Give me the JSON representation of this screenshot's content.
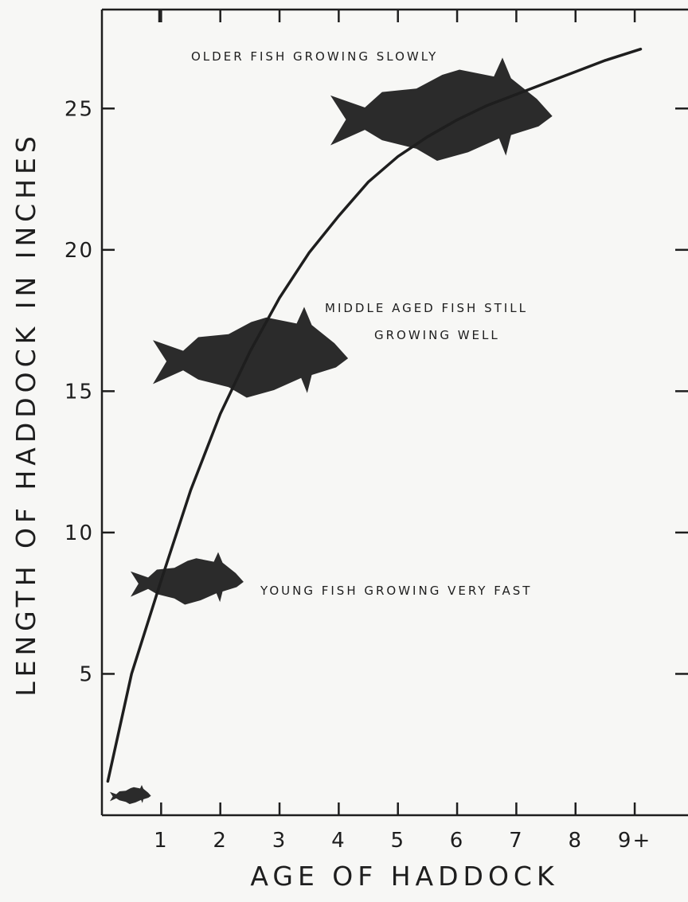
{
  "chart_data": {
    "type": "line",
    "title": "",
    "xlabel": "AGE OF HADDOCK",
    "ylabel": "LENGTH OF HADDOCK IN INCHES",
    "x_ticks": [
      "1",
      "2",
      "3",
      "4",
      "5",
      "6",
      "7",
      "8",
      "9+"
    ],
    "y_ticks": [
      "5",
      "10",
      "15",
      "20",
      "25"
    ],
    "xlim": [
      0,
      9.9
    ],
    "ylim": [
      0,
      28.5
    ],
    "grid": false,
    "series": [
      {
        "x": [
          0.1,
          0.5,
          1.0,
          1.5,
          2.0,
          2.5,
          3.0,
          3.5,
          4.0,
          4.5,
          5.0,
          5.5,
          6.0,
          6.5,
          7.0,
          7.5,
          8.0,
          8.5,
          9.1
        ],
        "y": [
          1.2,
          5.0,
          8.3,
          11.5,
          14.2,
          16.4,
          18.3,
          19.9,
          21.2,
          22.4,
          23.3,
          24.0,
          24.6,
          25.1,
          25.5,
          25.9,
          26.3,
          26.7,
          27.1
        ]
      }
    ],
    "annotations": [
      "OLDER FISH GROWING SLOWLY",
      "MIDDLE AGED FISH STILL",
      "GROWING WELL",
      "YOUNG FISH GROWING VERY FAST"
    ]
  }
}
